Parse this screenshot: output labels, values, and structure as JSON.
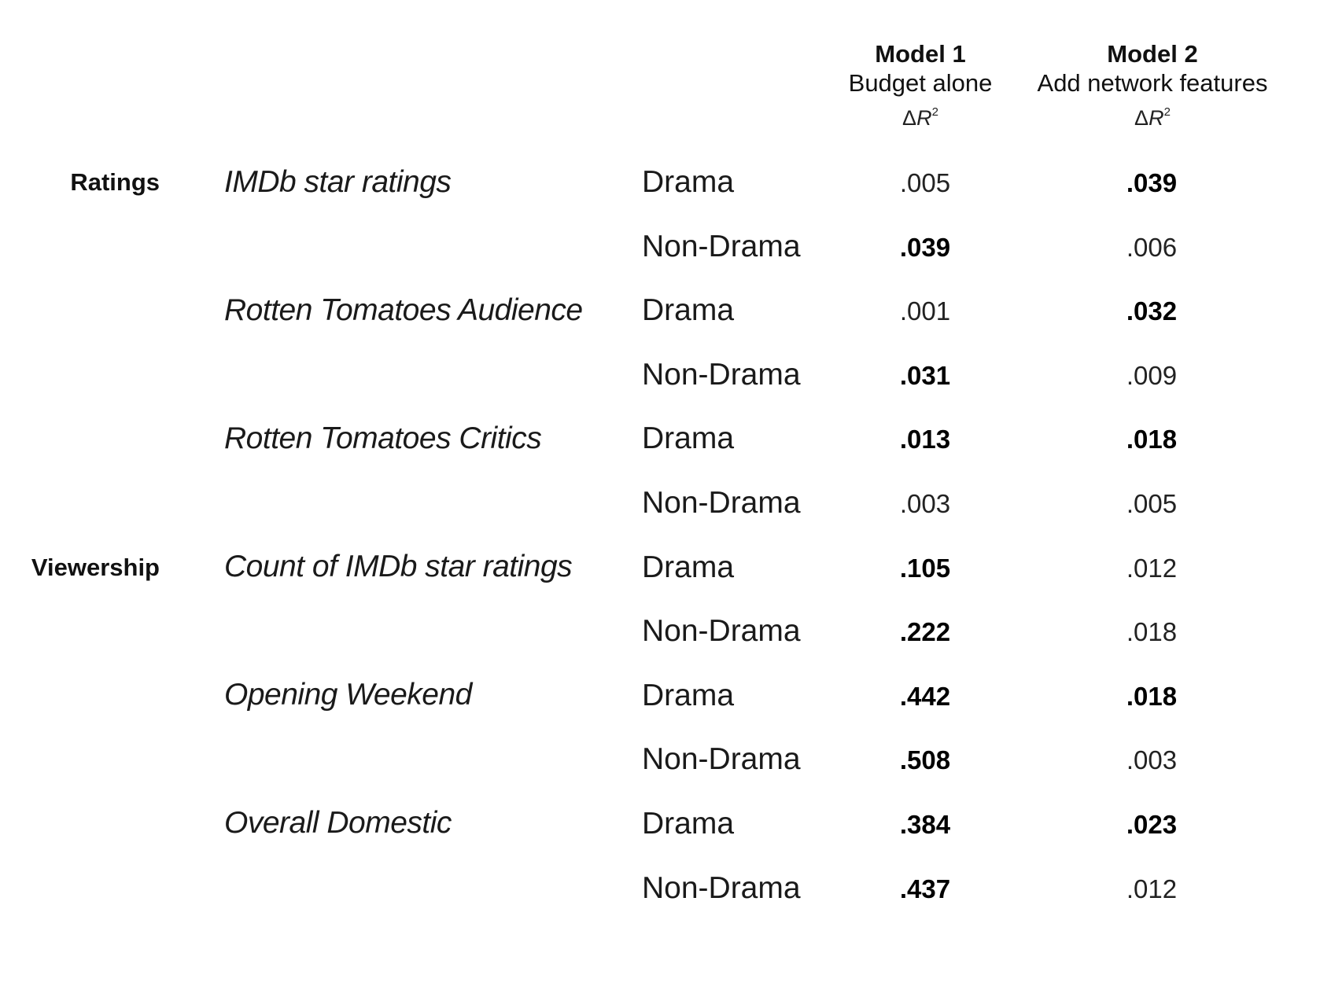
{
  "header": {
    "model1": {
      "title": "Model 1",
      "subtitle": "Budget alone",
      "delta": "Δ",
      "r": "R",
      "exp": "2"
    },
    "model2": {
      "title": "Model 2",
      "subtitle": "Add network features",
      "delta": "Δ",
      "r": "R",
      "exp": "2"
    }
  },
  "groups": [
    {
      "label": "Ratings"
    },
    {
      "label": "Viewership"
    }
  ],
  "measures": [
    {
      "label": "IMDb star ratings"
    },
    {
      "label": "Rotten Tomatoes Audience"
    },
    {
      "label": "Rotten Tomatoes Critics"
    },
    {
      "label": "Count of IMDb star ratings"
    },
    {
      "label": "Opening Weekend"
    },
    {
      "label": "Overall Domestic"
    }
  ],
  "rows": [
    {
      "genre": "Drama",
      "m1": ".005",
      "m1_bold": false,
      "m2": ".039",
      "m2_bold": true
    },
    {
      "genre": "Non-Drama",
      "m1": ".039",
      "m1_bold": true,
      "m2": ".006",
      "m2_bold": false
    },
    {
      "genre": "Drama",
      "m1": ".001",
      "m1_bold": false,
      "m2": ".032",
      "m2_bold": true
    },
    {
      "genre": "Non-Drama",
      "m1": ".031",
      "m1_bold": true,
      "m2": ".009",
      "m2_bold": false
    },
    {
      "genre": "Drama",
      "m1": ".013",
      "m1_bold": true,
      "m2": ".018",
      "m2_bold": true
    },
    {
      "genre": "Non-Drama",
      "m1": ".003",
      "m1_bold": false,
      "m2": ".005",
      "m2_bold": false
    },
    {
      "genre": "Drama",
      "m1": ".105",
      "m1_bold": true,
      "m2": ".012",
      "m2_bold": false
    },
    {
      "genre": "Non-Drama",
      "m1": ".222",
      "m1_bold": true,
      "m2": ".018",
      "m2_bold": false
    },
    {
      "genre": "Drama",
      "m1": ".442",
      "m1_bold": true,
      "m2": ".018",
      "m2_bold": true
    },
    {
      "genre": "Non-Drama",
      "m1": ".508",
      "m1_bold": true,
      "m2": ".003",
      "m2_bold": false
    },
    {
      "genre": "Drama",
      "m1": ".384",
      "m1_bold": true,
      "m2": ".023",
      "m2_bold": true
    },
    {
      "genre": "Non-Drama",
      "m1": ".437",
      "m1_bold": true,
      "m2": ".012",
      "m2_bold": false
    }
  ]
}
